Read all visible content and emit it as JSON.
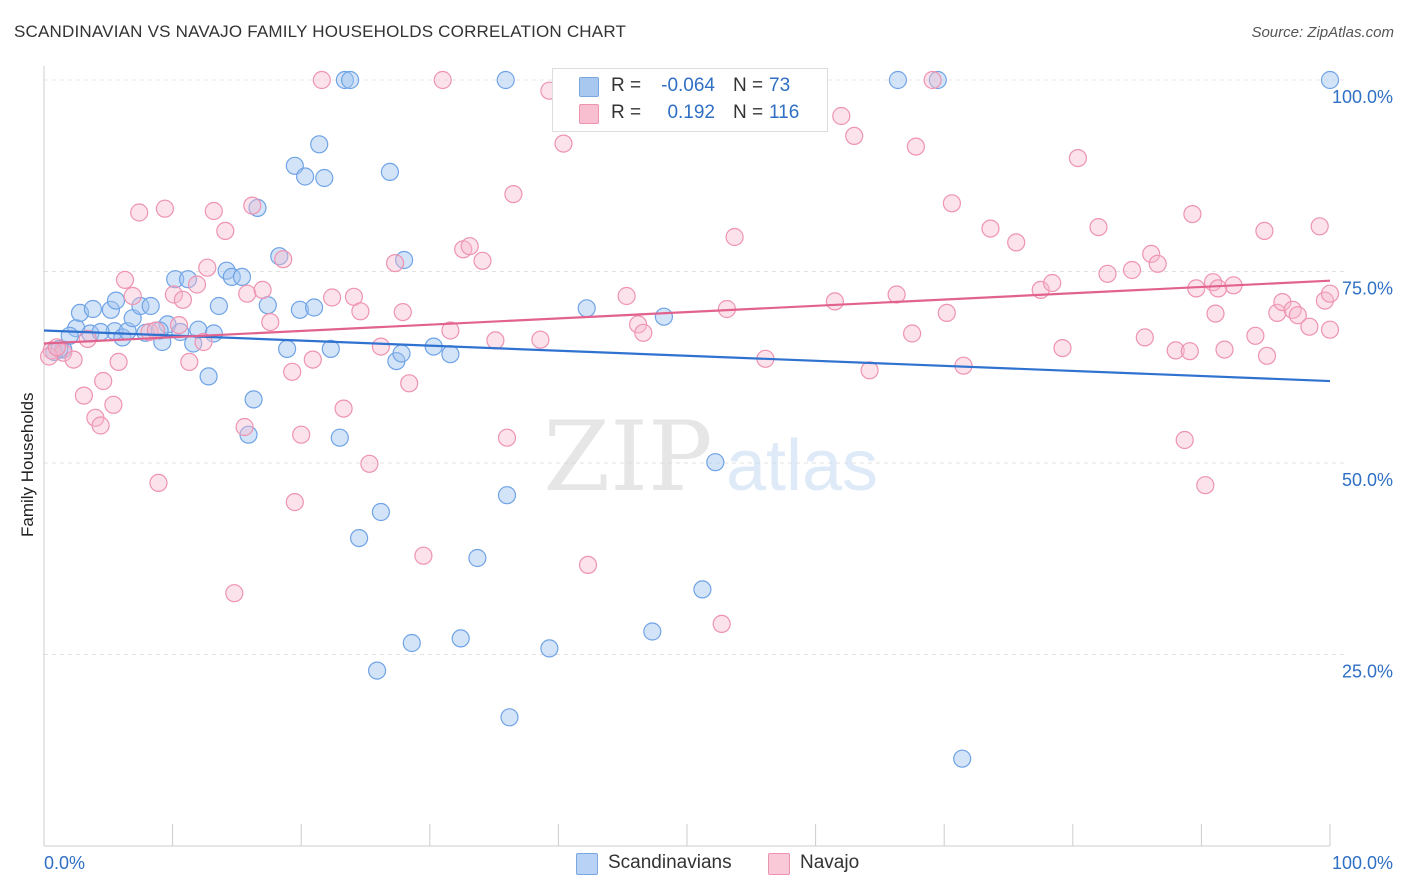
{
  "title": "SCANDINAVIAN VS NAVAJO FAMILY HOUSEHOLDS CORRELATION CHART",
  "source": "Source: ZipAtlas.com",
  "watermark": {
    "zip": "ZIP",
    "atlas": "atlas"
  },
  "legend_stats": [
    {
      "series": "Scandinavians",
      "r_label": "R =",
      "r_value": "-0.064",
      "n_label": "N =",
      "n_value": "73",
      "color": "#a9c8f0",
      "border": "#7aa7e0"
    },
    {
      "series": "Navajo",
      "r_label": "R =",
      "r_value": "0.192",
      "n_label": "N =",
      "n_value": "116",
      "color": "#f7bfd0",
      "border": "#ee93b0"
    }
  ],
  "chart_data": {
    "type": "scatter",
    "title": "SCANDINAVIAN VS NAVAJO FAMILY HOUSEHOLDS CORRELATION CHART",
    "xlabel": "",
    "ylabel": "Family Households",
    "xlim": [
      0,
      100
    ],
    "ylim": [
      0,
      105
    ],
    "x_tick_labels": [
      "0.0%",
      "100.0%"
    ],
    "y_tick_labels": [
      "25.0%",
      "50.0%",
      "75.0%",
      "100.0%"
    ],
    "y_ticks": [
      25,
      50,
      75,
      100
    ],
    "grid": true,
    "legend_position": "bottom",
    "series": [
      {
        "name": "Scandinavians",
        "color": "#6fa3e6",
        "fill": "rgba(160,196,240,0.45)",
        "line_color": "#2f72cf",
        "trend": {
          "x": [
            0,
            100
          ],
          "y": [
            67.3,
            60.7
          ]
        },
        "points": [
          [
            1.5,
            64.8
          ],
          [
            2.5,
            67.6
          ],
          [
            2.8,
            69.6
          ],
          [
            3.6,
            66.9
          ],
          [
            3.8,
            70.1
          ],
          [
            5.2,
            70.0
          ],
          [
            5.5,
            67.2
          ],
          [
            5.6,
            71.2
          ],
          [
            6.1,
            66.4
          ],
          [
            6.5,
            67.2
          ],
          [
            6.9,
            68.9
          ],
          [
            7.5,
            70.5
          ],
          [
            7.9,
            67.0
          ],
          [
            8.3,
            70.5
          ],
          [
            9.2,
            65.8
          ],
          [
            9.6,
            68.1
          ],
          [
            10.2,
            74.0
          ],
          [
            10.6,
            67.1
          ],
          [
            11.2,
            74.0
          ],
          [
            11.6,
            65.6
          ],
          [
            12.0,
            67.4
          ],
          [
            12.8,
            61.3
          ],
          [
            13.2,
            66.9
          ],
          [
            13.6,
            70.5
          ],
          [
            14.2,
            75.1
          ],
          [
            14.6,
            74.3
          ],
          [
            15.4,
            74.3
          ],
          [
            15.9,
            53.7
          ],
          [
            16.3,
            58.3
          ],
          [
            16.6,
            83.3
          ],
          [
            17.4,
            70.6
          ],
          [
            18.3,
            77.0
          ],
          [
            18.9,
            64.9
          ],
          [
            19.5,
            88.8
          ],
          [
            19.9,
            70.0
          ],
          [
            20.3,
            87.4
          ],
          [
            21.0,
            70.3
          ],
          [
            21.4,
            91.6
          ],
          [
            21.8,
            87.2
          ],
          [
            22.3,
            64.9
          ],
          [
            23.0,
            53.3
          ],
          [
            23.4,
            100.0
          ],
          [
            23.8,
            100.0
          ],
          [
            24.5,
            40.2
          ],
          [
            25.9,
            22.9
          ],
          [
            26.2,
            43.6
          ],
          [
            26.9,
            88.0
          ],
          [
            27.4,
            63.3
          ],
          [
            27.8,
            64.3
          ],
          [
            28.0,
            76.5
          ],
          [
            28.6,
            26.5
          ],
          [
            30.3,
            65.2
          ],
          [
            31.6,
            64.2
          ],
          [
            32.4,
            27.1
          ],
          [
            33.7,
            37.6
          ],
          [
            35.9,
            100.0
          ],
          [
            36.0,
            45.8
          ],
          [
            36.2,
            16.8
          ],
          [
            39.3,
            25.8
          ],
          [
            42.2,
            70.2
          ],
          [
            47.3,
            28.0
          ],
          [
            48.2,
            69.1
          ],
          [
            51.2,
            33.5
          ],
          [
            52.2,
            50.1
          ],
          [
            66.4,
            100.0
          ],
          [
            69.5,
            100.0
          ],
          [
            71.4,
            11.4
          ],
          [
            100.0,
            100.0
          ],
          [
            0.8,
            64.5
          ],
          [
            1.2,
            64.9
          ],
          [
            2.0,
            66.6
          ],
          [
            4.4,
            67.1
          ],
          [
            9.0,
            67.3
          ]
        ]
      },
      {
        "name": "Navajo",
        "color": "#ee93b0",
        "fill": "rgba(247,185,205,0.40)",
        "line_color": "#e2628e",
        "trend": {
          "x": [
            0,
            100
          ],
          "y": [
            65.6,
            73.8
          ]
        },
        "points": [
          [
            0.6,
            64.7
          ],
          [
            1.5,
            64.4
          ],
          [
            2.3,
            63.5
          ],
          [
            3.1,
            58.8
          ],
          [
            3.4,
            66.2
          ],
          [
            4.0,
            55.9
          ],
          [
            4.4,
            54.9
          ],
          [
            4.6,
            60.7
          ],
          [
            5.4,
            57.6
          ],
          [
            5.8,
            63.2
          ],
          [
            6.3,
            73.9
          ],
          [
            6.9,
            71.8
          ],
          [
            7.4,
            82.7
          ],
          [
            8.2,
            67.1
          ],
          [
            8.7,
            67.3
          ],
          [
            8.9,
            47.4
          ],
          [
            9.4,
            83.2
          ],
          [
            10.1,
            72.0
          ],
          [
            10.5,
            68.0
          ],
          [
            10.8,
            71.3
          ],
          [
            11.3,
            63.2
          ],
          [
            11.9,
            73.3
          ],
          [
            12.4,
            65.8
          ],
          [
            12.7,
            75.5
          ],
          [
            13.2,
            82.9
          ],
          [
            14.1,
            80.3
          ],
          [
            14.8,
            33.0
          ],
          [
            15.6,
            54.7
          ],
          [
            15.8,
            72.1
          ],
          [
            16.2,
            83.6
          ],
          [
            17.0,
            72.6
          ],
          [
            17.6,
            68.4
          ],
          [
            18.6,
            76.6
          ],
          [
            19.3,
            61.9
          ],
          [
            19.5,
            44.9
          ],
          [
            20.0,
            53.7
          ],
          [
            20.9,
            63.5
          ],
          [
            21.6,
            100.0
          ],
          [
            22.4,
            71.6
          ],
          [
            23.3,
            57.1
          ],
          [
            24.1,
            71.7
          ],
          [
            24.6,
            69.8
          ],
          [
            25.3,
            49.9
          ],
          [
            26.2,
            65.2
          ],
          [
            27.3,
            76.1
          ],
          [
            27.9,
            69.7
          ],
          [
            28.4,
            60.4
          ],
          [
            29.5,
            37.9
          ],
          [
            31.0,
            100.0
          ],
          [
            31.6,
            67.3
          ],
          [
            32.6,
            77.9
          ],
          [
            33.1,
            78.3
          ],
          [
            34.1,
            76.4
          ],
          [
            35.1,
            66.0
          ],
          [
            36.0,
            53.3
          ],
          [
            36.5,
            85.1
          ],
          [
            38.6,
            66.1
          ],
          [
            39.3,
            98.6
          ],
          [
            40.4,
            91.7
          ],
          [
            42.3,
            36.7
          ],
          [
            45.3,
            71.8
          ],
          [
            46.2,
            68.1
          ],
          [
            46.6,
            67.0
          ],
          [
            52.7,
            29.0
          ],
          [
            53.1,
            70.1
          ],
          [
            53.7,
            79.5
          ],
          [
            56.1,
            63.6
          ],
          [
            59.8,
            100.0
          ],
          [
            61.5,
            71.1
          ],
          [
            62.0,
            95.3
          ],
          [
            63.0,
            92.7
          ],
          [
            64.2,
            62.1
          ],
          [
            66.3,
            72.0
          ],
          [
            67.5,
            66.9
          ],
          [
            67.8,
            91.3
          ],
          [
            69.1,
            100.0
          ],
          [
            70.2,
            69.6
          ],
          [
            70.6,
            83.9
          ],
          [
            71.5,
            62.7
          ],
          [
            73.6,
            80.6
          ],
          [
            75.6,
            78.8
          ],
          [
            77.5,
            72.6
          ],
          [
            78.4,
            73.5
          ],
          [
            79.2,
            65.0
          ],
          [
            80.4,
            89.8
          ],
          [
            82.0,
            80.8
          ],
          [
            82.7,
            74.7
          ],
          [
            84.6,
            75.2
          ],
          [
            85.6,
            66.4
          ],
          [
            86.1,
            77.3
          ],
          [
            86.6,
            76.0
          ],
          [
            88.0,
            64.7
          ],
          [
            88.7,
            53.0
          ],
          [
            89.1,
            64.6
          ],
          [
            89.3,
            82.5
          ],
          [
            89.6,
            72.8
          ],
          [
            90.3,
            47.1
          ],
          [
            90.9,
            73.6
          ],
          [
            91.1,
            69.5
          ],
          [
            91.3,
            72.8
          ],
          [
            91.8,
            64.8
          ],
          [
            92.5,
            73.2
          ],
          [
            94.2,
            66.6
          ],
          [
            94.9,
            80.3
          ],
          [
            95.1,
            64.0
          ],
          [
            95.9,
            69.6
          ],
          [
            96.3,
            71.0
          ],
          [
            97.1,
            70.0
          ],
          [
            97.5,
            69.3
          ],
          [
            98.4,
            67.8
          ],
          [
            99.2,
            80.9
          ],
          [
            99.6,
            71.2
          ],
          [
            100.0,
            72.1
          ],
          [
            100.0,
            67.4
          ],
          [
            0.4,
            63.9
          ],
          [
            1.0,
            65.1
          ]
        ]
      }
    ]
  }
}
